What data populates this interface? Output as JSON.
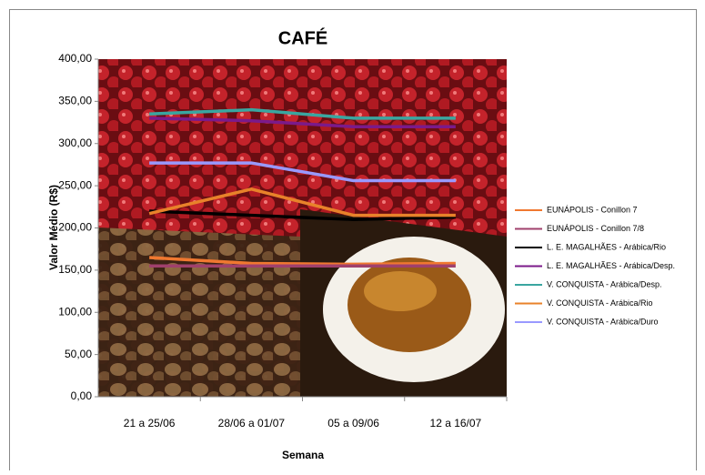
{
  "chart_data": {
    "type": "line",
    "title": "CAFÉ",
    "x_label": "Semana",
    "y_label": "Valor Médio (R$)",
    "categories": [
      "21 a 25/06",
      "28/06 a 01/07",
      "05 a 09/06",
      "12 a 16/07"
    ],
    "ylim": [
      0,
      400
    ],
    "yticks": [
      {
        "value": 0,
        "label": "0,00"
      },
      {
        "value": 50,
        "label": "50,00"
      },
      {
        "value": 100,
        "label": "100,00"
      },
      {
        "value": 150,
        "label": "150,00"
      },
      {
        "value": 200,
        "label": "200,00"
      },
      {
        "value": 250,
        "label": "250,00"
      },
      {
        "value": 300,
        "label": "300,00"
      },
      {
        "value": 350,
        "label": "350,00"
      },
      {
        "value": 400,
        "label": "400,00"
      }
    ],
    "legend": "right",
    "series": [
      {
        "name": "EUNÁPOLIS - Conillon 7",
        "color": "#f07830",
        "values": [
          165,
          158,
          157,
          158
        ]
      },
      {
        "name": "EUNÁPOLIS - Conillon 7/8",
        "color": "#a0406c",
        "values": [
          155,
          155,
          155,
          155
        ]
      },
      {
        "name": "L. E. MAGALHÃES - Arábica/Rio",
        "color": "#000000",
        "values": [
          220,
          215,
          210,
          213
        ]
      },
      {
        "name": "L. E. MAGALHÃES - Arábica/Desp.",
        "color": "#7b1a8a",
        "values": [
          330,
          327,
          320,
          320
        ]
      },
      {
        "name": "V. CONQUISTA - Arábica/Desp.",
        "color": "#3aa6a0",
        "values": [
          335,
          340,
          330,
          330
        ]
      },
      {
        "name": "V. CONQUISTA - Arábica/Rio",
        "color": "#e8822a",
        "values": [
          217,
          246,
          215,
          215
        ]
      },
      {
        "name": "V. CONQUISTA - Arábica/Duro",
        "color": "#9999ff",
        "values": [
          277,
          277,
          256,
          256
        ]
      }
    ]
  }
}
